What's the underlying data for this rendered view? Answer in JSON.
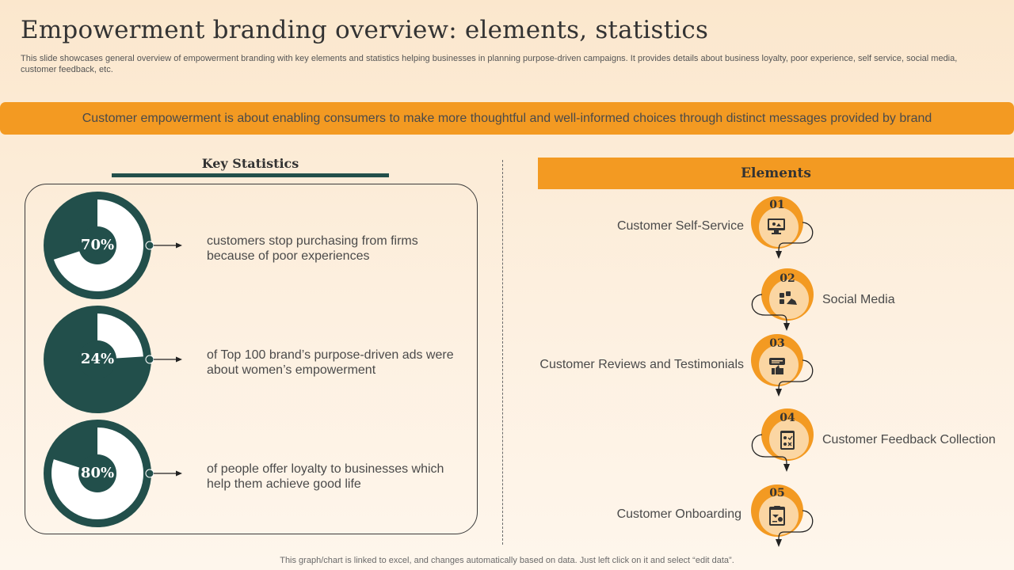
{
  "header": {
    "title": "Empowerment branding overview: elements, statistics",
    "subtitle": "This slide showcases general overview of empowerment branding with key elements and statistics helping businesses in planning purpose-driven campaigns. It provides details about business loyalty, poor experience, self service, social media, customer feedback, etc."
  },
  "banner": {
    "text": "Customer empowerment is about enabling consumers to make more thoughtful  and well-informed  choices through  distinct messages provided by brand"
  },
  "key_statistics": {
    "title": "Key Statistics",
    "stats": [
      {
        "percent": 70,
        "label": "70%",
        "text": "customers stop purchasing from firms because of poor experiences"
      },
      {
        "percent": 24,
        "label": "24%",
        "text": "of Top 100 brand’s purpose-driven ads were about women’s empowerment"
      },
      {
        "percent": 80,
        "label": "80%",
        "text": "of people offer loyalty  to businesses which help them achieve good life"
      }
    ]
  },
  "elements": {
    "title": "Elements",
    "items": [
      {
        "number": "01",
        "label": "Customer Self-Service",
        "icon": "computer-self-service-icon"
      },
      {
        "number": "02",
        "label": "Social Media",
        "icon": "social-media-icon"
      },
      {
        "number": "03",
        "label": "Customer Reviews and Testimonials",
        "icon": "thumbs-up-review-icon"
      },
      {
        "number": "04",
        "label": "Customer Feedback Collection",
        "icon": "feedback-checklist-icon"
      },
      {
        "number": "05",
        "label": "Customer Onboarding",
        "icon": "onboarding-clipboard-icon"
      }
    ]
  },
  "footer": {
    "note": "This graph/chart is linked to excel,  and changes automatically based on data. Just left click on it and select “edit data”."
  },
  "colors": {
    "accent": "#f39a22",
    "dark_teal": "#224f4b",
    "circle_fill": "#fbd6a3"
  }
}
